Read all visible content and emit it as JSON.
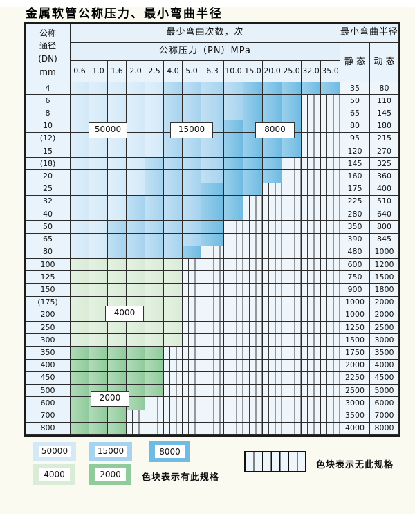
{
  "title": "金属软管公称压力、最小弯曲半径",
  "grade_colors": {
    "50000": "#d3e9f8",
    "15000": "#a6d3ef",
    "8000": "#6fbbe3",
    "4000": "#d9ecd6",
    "2000": "#90cb9b"
  },
  "overlays": [
    {
      "text": "50000"
    },
    {
      "text": "15000"
    },
    {
      "text": "8000"
    },
    {
      "text": "4000"
    },
    {
      "text": "2000"
    }
  ],
  "legend": {
    "items": [
      "50000",
      "15000",
      "8000",
      "4000",
      "2000"
    ],
    "has_spec_label": "色块表示有此规格",
    "no_spec_label": "色块表示无此规格"
  },
  "chart_data": {
    "type": "table",
    "title": "金属软管公称压力、最小弯曲半径",
    "headers": {
      "corner": [
        "公称",
        "通径",
        "(DN)",
        "mm"
      ],
      "cycles": "最少弯曲次数，次",
      "pressure": "公称压力（PN）MPa",
      "radius": "最小弯曲半径",
      "static": "静 态",
      "dynamic": "动 态"
    },
    "pressures": [
      "0.6",
      "1.0",
      "1.6",
      "2.0",
      "2.5",
      "4.0",
      "5.0",
      "6.3",
      "10.0",
      "15.0",
      "20.0",
      "25.0",
      "32.0",
      "35.0"
    ],
    "grades_note": "bands = [min-bend-cycles grade, number of pressure columns available]; remaining columns are hatched = spec not available",
    "rows": [
      {
        "dn": "4",
        "bands": [
          [
            "50000",
            5
          ],
          [
            "15000",
            4
          ],
          [
            "8000",
            5
          ]
        ],
        "static": "35",
        "dynamic": "80"
      },
      {
        "dn": "6",
        "bands": [
          [
            "50000",
            5
          ],
          [
            "15000",
            4
          ],
          [
            "8000",
            3
          ]
        ],
        "static": "50",
        "dynamic": "110"
      },
      {
        "dn": "8",
        "bands": [
          [
            "50000",
            5
          ],
          [
            "15000",
            4
          ],
          [
            "8000",
            3
          ]
        ],
        "static": "65",
        "dynamic": "145"
      },
      {
        "dn": "10",
        "bands": [
          [
            "50000",
            5
          ],
          [
            "15000",
            3
          ],
          [
            "8000",
            4
          ]
        ],
        "static": "80",
        "dynamic": "180"
      },
      {
        "dn": "(12)",
        "bands": [
          [
            "50000",
            5
          ],
          [
            "15000",
            3
          ],
          [
            "8000",
            4
          ]
        ],
        "static": "95",
        "dynamic": "215"
      },
      {
        "dn": "15",
        "bands": [
          [
            "50000",
            5
          ],
          [
            "15000",
            3
          ],
          [
            "8000",
            4
          ]
        ],
        "static": "120",
        "dynamic": "270"
      },
      {
        "dn": "(18)",
        "bands": [
          [
            "50000",
            4
          ],
          [
            "15000",
            4
          ],
          [
            "8000",
            3
          ]
        ],
        "static": "145",
        "dynamic": "325"
      },
      {
        "dn": "20",
        "bands": [
          [
            "50000",
            4
          ],
          [
            "15000",
            4
          ],
          [
            "8000",
            3
          ]
        ],
        "static": "160",
        "dynamic": "360"
      },
      {
        "dn": "25",
        "bands": [
          [
            "50000",
            4
          ],
          [
            "15000",
            3
          ],
          [
            "8000",
            3
          ]
        ],
        "static": "175",
        "dynamic": "400"
      },
      {
        "dn": "32",
        "bands": [
          [
            "50000",
            3
          ],
          [
            "15000",
            4
          ],
          [
            "8000",
            2
          ]
        ],
        "static": "225",
        "dynamic": "510"
      },
      {
        "dn": "40",
        "bands": [
          [
            "50000",
            3
          ],
          [
            "15000",
            4
          ],
          [
            "8000",
            2
          ]
        ],
        "static": "280",
        "dynamic": "640"
      },
      {
        "dn": "50",
        "bands": [
          [
            "50000",
            2
          ],
          [
            "15000",
            5
          ],
          [
            "8000",
            1
          ]
        ],
        "static": "350",
        "dynamic": "800"
      },
      {
        "dn": "65",
        "bands": [
          [
            "50000",
            2
          ],
          [
            "15000",
            5
          ],
          [
            "8000",
            1
          ]
        ],
        "static": "390",
        "dynamic": "845"
      },
      {
        "dn": "80",
        "bands": [
          [
            "50000",
            2
          ],
          [
            "15000",
            4
          ],
          [
            "8000",
            1
          ]
        ],
        "static": "480",
        "dynamic": "1000"
      },
      {
        "dn": "100",
        "bands": [
          [
            "4000",
            6
          ]
        ],
        "static": "600",
        "dynamic": "1200"
      },
      {
        "dn": "125",
        "bands": [
          [
            "4000",
            6
          ]
        ],
        "static": "750",
        "dynamic": "1500"
      },
      {
        "dn": "150",
        "bands": [
          [
            "4000",
            6
          ]
        ],
        "static": "900",
        "dynamic": "1800"
      },
      {
        "dn": "(175)",
        "bands": [
          [
            "4000",
            6
          ]
        ],
        "static": "1000",
        "dynamic": "2000"
      },
      {
        "dn": "200",
        "bands": [
          [
            "4000",
            6
          ]
        ],
        "static": "1000",
        "dynamic": "2000"
      },
      {
        "dn": "250",
        "bands": [
          [
            "4000",
            6
          ]
        ],
        "static": "1250",
        "dynamic": "2500"
      },
      {
        "dn": "300",
        "bands": [
          [
            "4000",
            6
          ]
        ],
        "static": "1500",
        "dynamic": "3000"
      },
      {
        "dn": "350",
        "bands": [
          [
            "2000",
            5
          ]
        ],
        "static": "1750",
        "dynamic": "3500"
      },
      {
        "dn": "400",
        "bands": [
          [
            "2000",
            5
          ]
        ],
        "static": "2000",
        "dynamic": "4000"
      },
      {
        "dn": "450",
        "bands": [
          [
            "2000",
            5
          ]
        ],
        "static": "2250",
        "dynamic": "4500"
      },
      {
        "dn": "500",
        "bands": [
          [
            "2000",
            5
          ]
        ],
        "static": "2500",
        "dynamic": "5000"
      },
      {
        "dn": "600",
        "bands": [
          [
            "2000",
            4
          ]
        ],
        "static": "3000",
        "dynamic": "6000"
      },
      {
        "dn": "700",
        "bands": [
          [
            "2000",
            3
          ]
        ],
        "static": "3500",
        "dynamic": "7000"
      },
      {
        "dn": "800",
        "bands": [
          [
            "2000",
            3
          ]
        ],
        "static": "4000",
        "dynamic": "8000"
      }
    ]
  }
}
